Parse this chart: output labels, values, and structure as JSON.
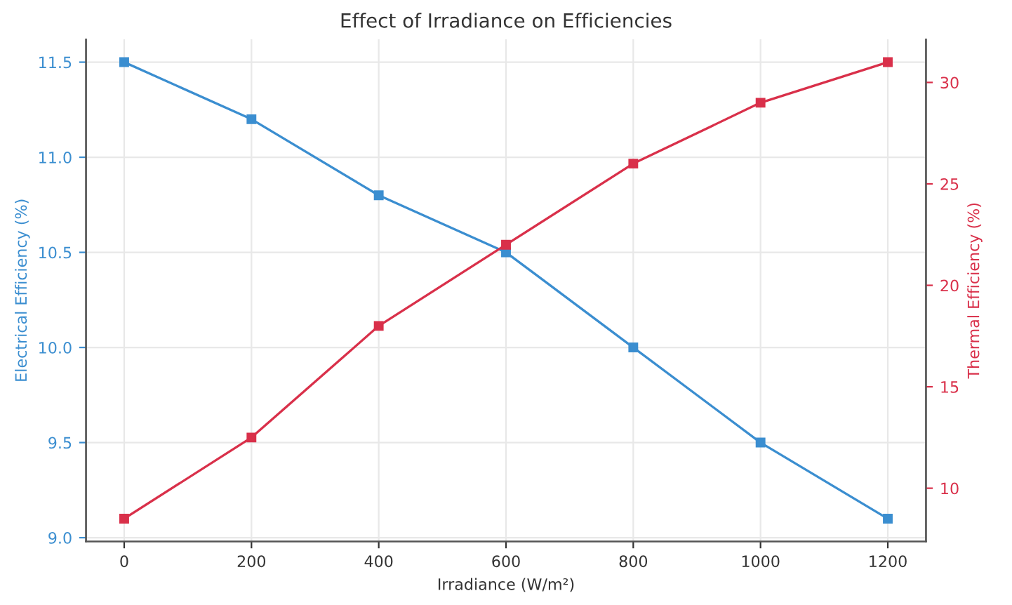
{
  "chart_data": {
    "type": "line",
    "title": "Effect of Irradiance on Efficiencies",
    "xlabel": "Irradiance (W/m²)",
    "ylabel": "Electrical Efficiency (%)",
    "y2label": "Thermal Efficiency (%)",
    "x": [
      0,
      200,
      400,
      600,
      800,
      1000,
      1200
    ],
    "series": [
      {
        "color": "#3b8ed0",
        "values": [
          11.5,
          11.2,
          10.8,
          10.5,
          10.0,
          9.5,
          9.1
        ]
      },
      {
        "color": "#d9304a",
        "axis": "y2",
        "values": [
          8.5,
          12.5,
          18,
          22,
          26,
          29,
          31
        ]
      }
    ],
    "xlim": [
      -60,
      1260
    ],
    "xticks": [
      0,
      200,
      400,
      600,
      800,
      1000,
      1200
    ],
    "ylim": [
      8.98,
      11.62
    ],
    "yticks": [
      {
        "value": 9,
        "label": "9.0"
      },
      9.5,
      {
        "value": 10,
        "label": "10.0"
      },
      10.5,
      {
        "value": 11,
        "label": "11.0"
      },
      11.5
    ],
    "y2lim": [
      7.375,
      32.125
    ],
    "y2ticks": [
      10,
      15,
      20,
      25,
      30
    ],
    "grid": true,
    "marker": "square",
    "line_style": "solid"
  }
}
